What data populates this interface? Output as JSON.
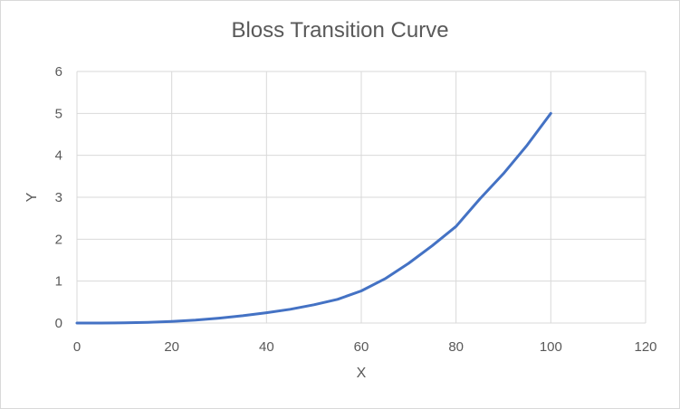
{
  "chart_data": {
    "type": "line",
    "title": "Bloss Transition Curve",
    "xlabel": "X",
    "ylabel": "Y",
    "xlim": [
      0,
      120
    ],
    "ylim": [
      0,
      6
    ],
    "xticks": [
      0,
      20,
      40,
      60,
      80,
      100,
      120
    ],
    "yticks": [
      0,
      1,
      2,
      3,
      4,
      5,
      6
    ],
    "grid": true,
    "legend": "none",
    "colors": {
      "line": "#4472c4",
      "grid": "#d9d9d9",
      "text": "#595959"
    },
    "series": [
      {
        "x": [
          0,
          5,
          10,
          15,
          20,
          25,
          30,
          35,
          40,
          45,
          50,
          55,
          60,
          65,
          70,
          75,
          80,
          85,
          90,
          95,
          100
        ],
        "values": [
          0,
          0.001,
          0.005,
          0.016,
          0.037,
          0.07,
          0.116,
          0.175,
          0.246,
          0.329,
          0.437,
          0.565,
          0.767,
          1.056,
          1.425,
          1.847,
          2.304,
          2.957,
          3.564,
          4.244,
          5.0
        ]
      }
    ]
  }
}
